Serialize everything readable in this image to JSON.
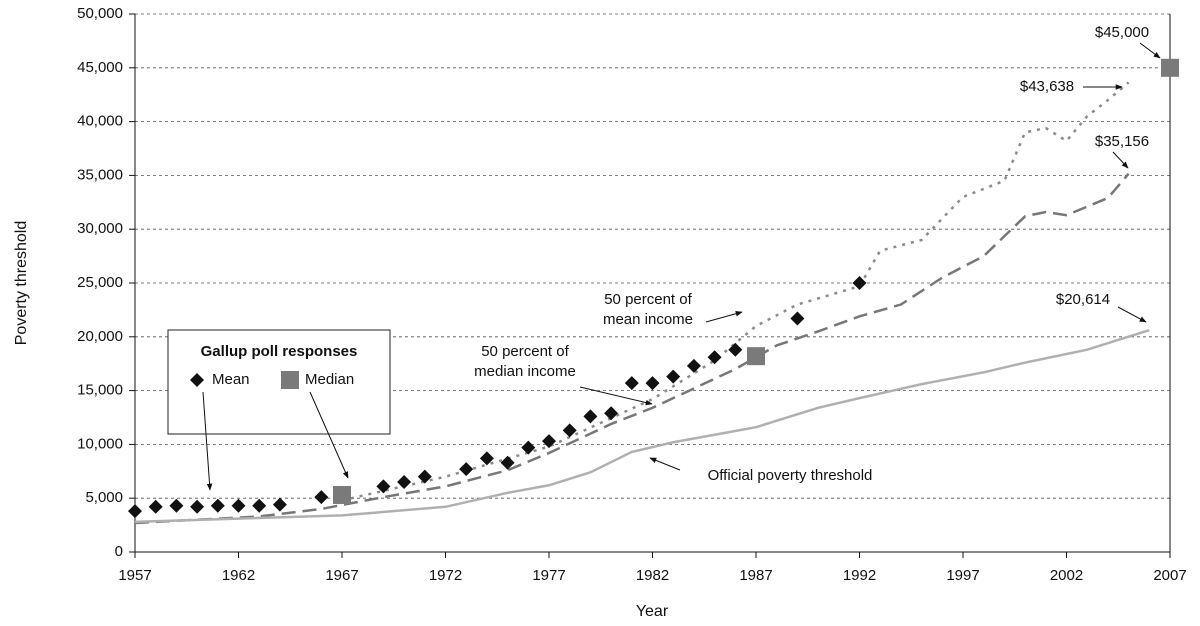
{
  "chart_data": {
    "type": "line",
    "x_label": "Year",
    "y_label": "Poverty threshold",
    "xlim": [
      1957,
      2007
    ],
    "xticks": [
      1957,
      1962,
      1967,
      1972,
      1977,
      1982,
      1987,
      1992,
      1997,
      2002,
      2007
    ],
    "ylim": [
      0,
      50000
    ],
    "yticks": [
      0,
      {
        "value": 5000,
        "label": "5,000"
      },
      {
        "value": 10000,
        "label": "10,000"
      },
      {
        "value": 15000,
        "label": "15,000"
      },
      {
        "value": 20000,
        "label": "20,000"
      },
      {
        "value": 25000,
        "label": "25,000"
      },
      {
        "value": 30000,
        "label": "30,000"
      },
      {
        "value": 35000,
        "label": "35,000"
      },
      {
        "value": 40000,
        "label": "40,000"
      },
      {
        "value": 45000,
        "label": "45,000"
      },
      {
        "value": 50000,
        "label": "50,000"
      }
    ],
    "grid": true,
    "legend_title": "Gallup poll responses",
    "series": [
      {
        "kind": "line",
        "style": "dotted",
        "color": "#8a8a8a",
        "x": [
          1967,
          1972,
          1977,
          1982,
          1985,
          1987,
          1989,
          1992,
          1993,
          1995,
          1997,
          1999,
          2000,
          2001,
          2002,
          2003,
          2004,
          2005
        ],
        "values": [
          4800,
          7000,
          9800,
          14200,
          17800,
          21000,
          23000,
          24700,
          28000,
          29000,
          33000,
          34500,
          39000,
          39400,
          38200,
          40500,
          42000,
          43638
        ]
      },
      {
        "kind": "line",
        "style": "dashed",
        "color": "#777777",
        "x": [
          1957,
          1960,
          1963,
          1966,
          1969,
          1972,
          1975,
          1977,
          1980,
          1982,
          1984,
          1986,
          1988,
          1990,
          1992,
          1994,
          1996,
          1998,
          2000,
          2001,
          2002,
          2004,
          2005
        ],
        "values": [
          2700,
          3000,
          3300,
          4000,
          5100,
          6100,
          7600,
          9200,
          11900,
          13400,
          15200,
          17000,
          19200,
          20500,
          21900,
          23000,
          25500,
          27500,
          31200,
          31600,
          31300,
          32900,
          35156
        ]
      },
      {
        "kind": "line",
        "style": "solid",
        "color": "#b0b0b0",
        "x": [
          1957,
          1962,
          1967,
          1972,
          1975,
          1977,
          1979,
          1981,
          1983,
          1985,
          1987,
          1990,
          1992,
          1995,
          1998,
          2000,
          2003,
          2006
        ],
        "values": [
          2800,
          3100,
          3400,
          4200,
          5500,
          6200,
          7400,
          9300,
          10200,
          10900,
          11600,
          13400,
          14300,
          15600,
          16700,
          17600,
          18800,
          20614
        ]
      },
      {
        "name": "Mean",
        "kind": "points",
        "marker": "diamond",
        "color": "#111111",
        "x": [
          1957,
          1958,
          1959,
          1960,
          1961,
          1962,
          1963,
          1964,
          1966,
          1969,
          1970,
          1971,
          1973,
          1974,
          1975,
          1976,
          1977,
          1978,
          1979,
          1980,
          1981,
          1982,
          1983,
          1984,
          1985,
          1986,
          1989,
          1992
        ],
        "values": [
          3800,
          4200,
          4300,
          4200,
          4300,
          4300,
          4300,
          4400,
          5100,
          6100,
          6500,
          7000,
          7700,
          8700,
          8300,
          9700,
          10300,
          11300,
          12600,
          12900,
          15700,
          15700,
          16300,
          17300,
          18100,
          18800,
          21700,
          25000
        ]
      },
      {
        "name": "Median",
        "kind": "points",
        "marker": "square",
        "color": "#7a7a7a",
        "x": [
          1967,
          1987,
          2007
        ],
        "values": [
          5300,
          18200,
          45000
        ]
      }
    ],
    "annotations": [
      {
        "text": [
          "$45,000"
        ],
        "value": 45000
      },
      {
        "text": [
          "$43,638"
        ],
        "value": 43638
      },
      {
        "text": [
          "$35,156"
        ],
        "value": 35156
      },
      {
        "text": [
          "$20,614"
        ],
        "value": 20614
      },
      {
        "text": [
          "50 percent of",
          "mean income"
        ]
      },
      {
        "text": [
          "50 percent of",
          "median income"
        ]
      },
      {
        "text": [
          "Official poverty threshold"
        ]
      }
    ]
  }
}
